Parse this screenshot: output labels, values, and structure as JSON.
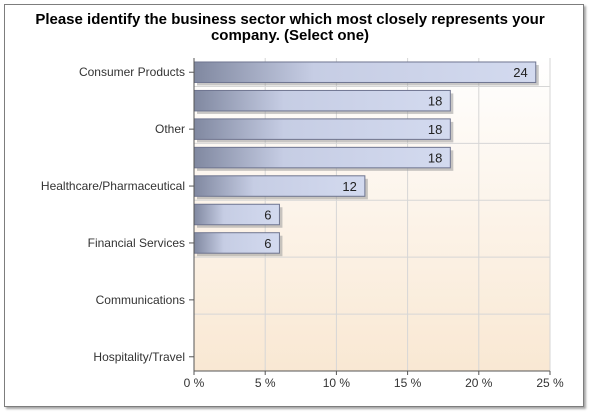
{
  "chart_data": {
    "type": "bar",
    "orientation": "horizontal",
    "title": "Please identify the business sector which most closely represents your company. (Select one)",
    "categories": [
      "Consumer Products",
      "",
      "Other",
      "",
      "Healthcare/Pharmaceutical",
      "",
      "Financial Services",
      "",
      "Communications",
      "",
      "Hospitality/Travel"
    ],
    "values": [
      24,
      18,
      18,
      18,
      12,
      6,
      6,
      0,
      0,
      0,
      0
    ],
    "value_labels": [
      "24",
      "18",
      "18",
      "18",
      "12",
      "6",
      "6",
      "",
      "",
      "",
      ""
    ],
    "xlim": [
      0,
      25
    ],
    "xticks": [
      0,
      5,
      10,
      15,
      20,
      25
    ],
    "xtick_labels": [
      "0 %",
      "5 %",
      "10 %",
      "15 %",
      "20 %",
      "25 %"
    ],
    "grid": true,
    "legend": "none"
  }
}
